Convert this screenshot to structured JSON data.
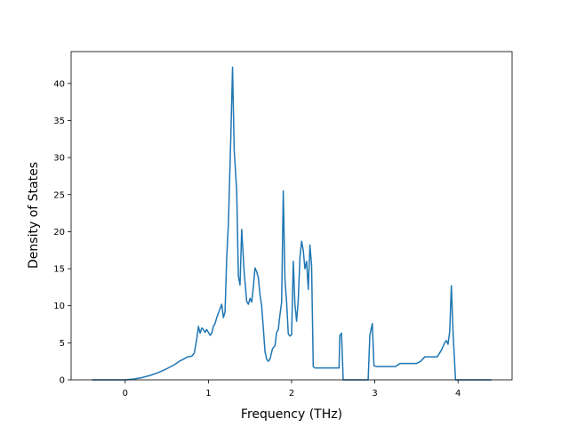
{
  "chart_data": {
    "type": "line",
    "title": "",
    "xlabel": "Frequency (THz)",
    "ylabel": "Density of States",
    "xlim": [
      -0.65,
      4.65
    ],
    "ylim": [
      0,
      44.3
    ],
    "x_ticks": [
      0,
      1,
      2,
      3,
      4
    ],
    "y_ticks": [
      0,
      5,
      10,
      15,
      20,
      25,
      30,
      35,
      40
    ],
    "grid": false,
    "legend": "none",
    "line_color": "#1f77b4",
    "series": [
      {
        "points": [
          [
            -0.4,
            0
          ],
          [
            0.0,
            0
          ],
          [
            0.1,
            0.1
          ],
          [
            0.2,
            0.3
          ],
          [
            0.3,
            0.6
          ],
          [
            0.4,
            1.0
          ],
          [
            0.5,
            1.5
          ],
          [
            0.6,
            2.1
          ],
          [
            0.65,
            2.5
          ],
          [
            0.7,
            2.8
          ],
          [
            0.75,
            3.1
          ],
          [
            0.8,
            3.2
          ],
          [
            0.83,
            3.6
          ],
          [
            0.86,
            5.5
          ],
          [
            0.88,
            7.2
          ],
          [
            0.9,
            6.3
          ],
          [
            0.92,
            7.0
          ],
          [
            0.94,
            6.8
          ],
          [
            0.96,
            6.4
          ],
          [
            0.98,
            6.8
          ],
          [
            1.0,
            6.4
          ],
          [
            1.02,
            6.0
          ],
          [
            1.04,
            6.3
          ],
          [
            1.06,
            7.2
          ],
          [
            1.08,
            7.6
          ],
          [
            1.1,
            8.4
          ],
          [
            1.13,
            9.3
          ],
          [
            1.16,
            10.2
          ],
          [
            1.18,
            8.4
          ],
          [
            1.2,
            9.2
          ],
          [
            1.22,
            16.5
          ],
          [
            1.24,
            21.0
          ],
          [
            1.27,
            33.0
          ],
          [
            1.29,
            42.2
          ],
          [
            1.31,
            31.0
          ],
          [
            1.34,
            25.5
          ],
          [
            1.36,
            14.0
          ],
          [
            1.38,
            12.8
          ],
          [
            1.4,
            20.3
          ],
          [
            1.43,
            14.5
          ],
          [
            1.46,
            10.6
          ],
          [
            1.48,
            10.2
          ],
          [
            1.5,
            11.0
          ],
          [
            1.52,
            10.5
          ],
          [
            1.54,
            12.5
          ],
          [
            1.56,
            15.1
          ],
          [
            1.58,
            14.6
          ],
          [
            1.6,
            13.8
          ],
          [
            1.62,
            11.5
          ],
          [
            1.64,
            10.0
          ],
          [
            1.66,
            7.0
          ],
          [
            1.68,
            3.8
          ],
          [
            1.7,
            2.8
          ],
          [
            1.72,
            2.5
          ],
          [
            1.74,
            2.8
          ],
          [
            1.77,
            4.2
          ],
          [
            1.8,
            4.6
          ],
          [
            1.82,
            6.4
          ],
          [
            1.84,
            6.8
          ],
          [
            1.86,
            8.8
          ],
          [
            1.88,
            10.5
          ],
          [
            1.9,
            25.5
          ],
          [
            1.92,
            13.5
          ],
          [
            1.94,
            10.5
          ],
          [
            1.96,
            6.2
          ],
          [
            1.98,
            5.9
          ],
          [
            2.0,
            6.1
          ],
          [
            2.02,
            16.0
          ],
          [
            2.04,
            10.2
          ],
          [
            2.06,
            7.9
          ],
          [
            2.08,
            10.8
          ],
          [
            2.1,
            16.5
          ],
          [
            2.12,
            18.7
          ],
          [
            2.14,
            17.5
          ],
          [
            2.16,
            15.0
          ],
          [
            2.18,
            16.0
          ],
          [
            2.2,
            12.2
          ],
          [
            2.22,
            18.2
          ],
          [
            2.24,
            15.5
          ],
          [
            2.26,
            1.8
          ],
          [
            2.28,
            1.6
          ],
          [
            2.5,
            1.6
          ],
          [
            2.57,
            1.6
          ],
          [
            2.58,
            6.0
          ],
          [
            2.6,
            6.3
          ],
          [
            2.62,
            0
          ],
          [
            2.65,
            0
          ],
          [
            2.9,
            0
          ],
          [
            2.92,
            0
          ],
          [
            2.94,
            6.0
          ],
          [
            2.97,
            7.6
          ],
          [
            2.99,
            1.9
          ],
          [
            3.02,
            1.8
          ],
          [
            3.25,
            1.8
          ],
          [
            3.3,
            2.2
          ],
          [
            3.5,
            2.2
          ],
          [
            3.55,
            2.5
          ],
          [
            3.6,
            3.1
          ],
          [
            3.75,
            3.1
          ],
          [
            3.8,
            4.0
          ],
          [
            3.84,
            5.0
          ],
          [
            3.86,
            5.3
          ],
          [
            3.88,
            4.8
          ],
          [
            3.9,
            6.5
          ],
          [
            3.92,
            12.7
          ],
          [
            3.94,
            6.5
          ],
          [
            3.97,
            0
          ],
          [
            4.0,
            0
          ],
          [
            4.4,
            0
          ]
        ]
      }
    ]
  }
}
